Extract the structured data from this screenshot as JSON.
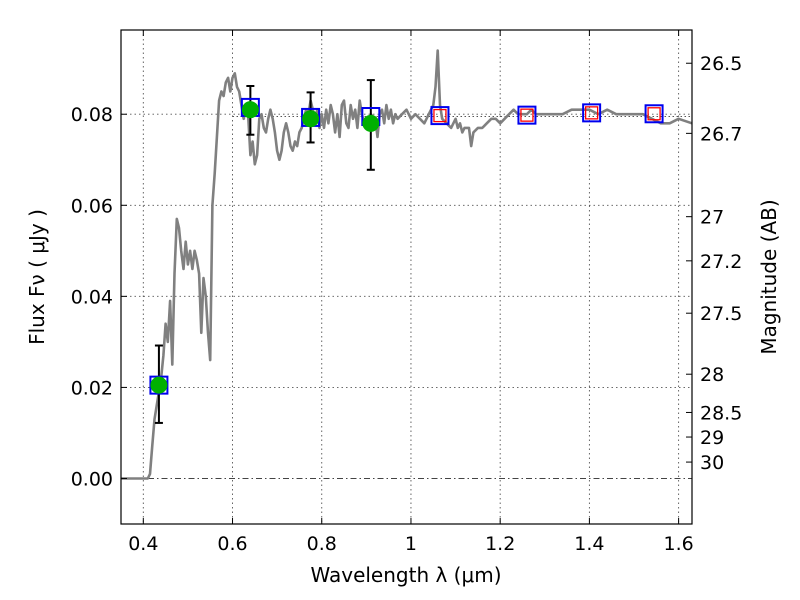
{
  "chart_data": {
    "type": "line",
    "xlabel": "Wavelength  λ (μm)",
    "ylabel": "Flux  Fν  ( μJy )",
    "ylabel_right": "Magnitude (AB)",
    "xlim": [
      0.35,
      1.63
    ],
    "ylim": [
      -0.01,
      0.0985
    ],
    "x_ticks": [
      0.4,
      0.6,
      0.8,
      1.0,
      1.2,
      1.4,
      1.6
    ],
    "x_tick_labels": [
      "0.4",
      "0.6",
      "0.8",
      "1",
      "1.2",
      "1.4",
      "1.6"
    ],
    "y_ticks": [
      0.0,
      0.02,
      0.04,
      0.06,
      0.08
    ],
    "y_tick_labels": [
      "0.00",
      "0.02",
      "0.04",
      "0.06",
      "0.08"
    ],
    "right_ticks": [
      {
        "label": "26.5",
        "flux": 0.0912
      },
      {
        "label": "26.7",
        "flux": 0.0758
      },
      {
        "label": "27",
        "flux": 0.0575
      },
      {
        "label": "27.2",
        "flux": 0.0478
      },
      {
        "label": "27.5",
        "flux": 0.0363
      },
      {
        "label": "28",
        "flux": 0.0229
      },
      {
        "label": "28.5",
        "flux": 0.0145
      },
      {
        "label": "29",
        "flux": 0.0091
      },
      {
        "label": "30",
        "flux": 0.0036
      }
    ],
    "grid": true,
    "series": [
      {
        "kind": "sed-model",
        "color": "#808080",
        "points": [
          [
            0.35,
            0.0
          ],
          [
            0.41,
            0.0
          ],
          [
            0.415,
            0.001
          ],
          [
            0.42,
            0.007
          ],
          [
            0.425,
            0.013
          ],
          [
            0.43,
            0.016
          ],
          [
            0.435,
            0.019
          ],
          [
            0.44,
            0.022
          ],
          [
            0.445,
            0.027
          ],
          [
            0.45,
            0.034
          ],
          [
            0.455,
            0.03
          ],
          [
            0.46,
            0.039
          ],
          [
            0.465,
            0.025
          ],
          [
            0.47,
            0.045
          ],
          [
            0.475,
            0.057
          ],
          [
            0.48,
            0.055
          ],
          [
            0.485,
            0.05
          ],
          [
            0.49,
            0.046
          ],
          [
            0.495,
            0.052
          ],
          [
            0.5,
            0.047
          ],
          [
            0.505,
            0.05
          ],
          [
            0.51,
            0.046
          ],
          [
            0.515,
            0.05
          ],
          [
            0.52,
            0.048
          ],
          [
            0.525,
            0.045
          ],
          [
            0.53,
            0.032
          ],
          [
            0.535,
            0.044
          ],
          [
            0.54,
            0.04
          ],
          [
            0.545,
            0.032
          ],
          [
            0.55,
            0.026
          ],
          [
            0.555,
            0.06
          ],
          [
            0.56,
            0.067
          ],
          [
            0.565,
            0.075
          ],
          [
            0.57,
            0.083
          ],
          [
            0.575,
            0.085
          ],
          [
            0.58,
            0.084
          ],
          [
            0.585,
            0.087
          ],
          [
            0.59,
            0.088
          ],
          [
            0.595,
            0.085
          ],
          [
            0.6,
            0.088
          ],
          [
            0.605,
            0.089
          ],
          [
            0.61,
            0.086
          ],
          [
            0.615,
            0.085
          ],
          [
            0.62,
            0.082
          ],
          [
            0.625,
            0.079
          ],
          [
            0.63,
            0.081
          ],
          [
            0.635,
            0.08
          ],
          [
            0.64,
            0.071
          ],
          [
            0.645,
            0.074
          ],
          [
            0.65,
            0.069
          ],
          [
            0.655,
            0.071
          ],
          [
            0.66,
            0.079
          ],
          [
            0.665,
            0.08
          ],
          [
            0.67,
            0.077
          ],
          [
            0.675,
            0.076
          ],
          [
            0.68,
            0.079
          ],
          [
            0.685,
            0.081
          ],
          [
            0.69,
            0.079
          ],
          [
            0.695,
            0.076
          ],
          [
            0.7,
            0.072
          ],
          [
            0.705,
            0.07
          ],
          [
            0.71,
            0.072
          ],
          [
            0.715,
            0.076
          ],
          [
            0.72,
            0.078
          ],
          [
            0.725,
            0.076
          ],
          [
            0.73,
            0.073
          ],
          [
            0.735,
            0.072
          ],
          [
            0.74,
            0.074
          ],
          [
            0.745,
            0.073
          ],
          [
            0.75,
            0.076
          ],
          [
            0.755,
            0.077
          ],
          [
            0.76,
            0.079
          ],
          [
            0.765,
            0.081
          ],
          [
            0.77,
            0.08
          ],
          [
            0.775,
            0.083
          ],
          [
            0.78,
            0.081
          ],
          [
            0.785,
            0.079
          ],
          [
            0.79,
            0.081
          ],
          [
            0.795,
            0.077
          ],
          [
            0.8,
            0.08
          ],
          [
            0.805,
            0.077
          ],
          [
            0.81,
            0.081
          ],
          [
            0.815,
            0.078
          ],
          [
            0.82,
            0.082
          ],
          [
            0.825,
            0.08
          ],
          [
            0.83,
            0.076
          ],
          [
            0.835,
            0.08
          ],
          [
            0.84,
            0.075
          ],
          [
            0.845,
            0.082
          ],
          [
            0.85,
            0.083
          ],
          [
            0.855,
            0.078
          ],
          [
            0.86,
            0.077
          ],
          [
            0.865,
            0.082
          ],
          [
            0.87,
            0.079
          ],
          [
            0.875,
            0.081
          ],
          [
            0.88,
            0.077
          ],
          [
            0.885,
            0.083
          ],
          [
            0.89,
            0.08
          ],
          [
            0.895,
            0.078
          ],
          [
            0.9,
            0.079
          ],
          [
            0.905,
            0.077
          ],
          [
            0.91,
            0.08
          ],
          [
            0.92,
            0.079
          ],
          [
            0.925,
            0.075
          ],
          [
            0.93,
            0.08
          ],
          [
            0.935,
            0.081
          ],
          [
            0.94,
            0.078
          ],
          [
            0.945,
            0.082
          ],
          [
            0.95,
            0.079
          ],
          [
            0.955,
            0.081
          ],
          [
            0.96,
            0.078
          ],
          [
            0.965,
            0.08
          ],
          [
            0.97,
            0.079
          ],
          [
            0.98,
            0.08
          ],
          [
            0.99,
            0.081
          ],
          [
            1.0,
            0.079
          ],
          [
            1.01,
            0.08
          ],
          [
            1.02,
            0.079
          ],
          [
            1.03,
            0.078
          ],
          [
            1.04,
            0.08
          ],
          [
            1.05,
            0.082
          ],
          [
            1.055,
            0.086
          ],
          [
            1.06,
            0.094
          ],
          [
            1.065,
            0.082
          ],
          [
            1.07,
            0.079
          ],
          [
            1.08,
            0.078
          ],
          [
            1.09,
            0.077
          ],
          [
            1.1,
            0.079
          ],
          [
            1.105,
            0.077
          ],
          [
            1.11,
            0.078
          ],
          [
            1.115,
            0.076
          ],
          [
            1.12,
            0.077
          ],
          [
            1.13,
            0.077
          ],
          [
            1.135,
            0.073
          ],
          [
            1.14,
            0.076
          ],
          [
            1.15,
            0.077
          ],
          [
            1.16,
            0.077
          ],
          [
            1.17,
            0.078
          ],
          [
            1.18,
            0.079
          ],
          [
            1.19,
            0.079
          ],
          [
            1.2,
            0.078
          ],
          [
            1.21,
            0.079
          ],
          [
            1.22,
            0.08
          ],
          [
            1.23,
            0.081
          ],
          [
            1.24,
            0.08
          ],
          [
            1.25,
            0.08
          ],
          [
            1.26,
            0.08
          ],
          [
            1.27,
            0.081
          ],
          [
            1.28,
            0.08
          ],
          [
            1.3,
            0.08
          ],
          [
            1.32,
            0.08
          ],
          [
            1.34,
            0.08
          ],
          [
            1.36,
            0.081
          ],
          [
            1.38,
            0.081
          ],
          [
            1.4,
            0.081
          ],
          [
            1.42,
            0.08
          ],
          [
            1.44,
            0.081
          ],
          [
            1.46,
            0.08
          ],
          [
            1.48,
            0.08
          ],
          [
            1.5,
            0.08
          ],
          [
            1.52,
            0.08
          ],
          [
            1.54,
            0.079
          ],
          [
            1.56,
            0.078
          ],
          [
            1.58,
            0.078
          ],
          [
            1.6,
            0.079
          ],
          [
            1.63,
            0.078
          ]
        ]
      },
      {
        "kind": "observed-with-errors",
        "color": "#00b000",
        "points": [
          {
            "x": 0.435,
            "y": 0.0205,
            "err_lo": 0.0122,
            "err_hi": 0.0292
          },
          {
            "x": 0.64,
            "y": 0.081,
            "err_lo": 0.0755,
            "err_hi": 0.0862
          },
          {
            "x": 0.775,
            "y": 0.079,
            "err_lo": 0.0738,
            "err_hi": 0.0848
          },
          {
            "x": 0.91,
            "y": 0.078,
            "err_lo": 0.0678,
            "err_hi": 0.0875
          }
        ]
      },
      {
        "kind": "model-photometry",
        "color": "#0000ee",
        "points": [
          {
            "x": 0.435,
            "y": 0.0205
          },
          {
            "x": 0.64,
            "y": 0.0815
          },
          {
            "x": 0.775,
            "y": 0.0793
          },
          {
            "x": 0.91,
            "y": 0.0795
          },
          {
            "x": 1.065,
            "y": 0.0797
          },
          {
            "x": 1.26,
            "y": 0.0798
          },
          {
            "x": 1.405,
            "y": 0.0803
          },
          {
            "x": 1.545,
            "y": 0.0801
          }
        ]
      },
      {
        "kind": "upper-limits",
        "color": "#ff0000",
        "points": [
          {
            "x": 1.065,
            "y": 0.0797
          },
          {
            "x": 1.26,
            "y": 0.0798
          },
          {
            "x": 1.405,
            "y": 0.0803
          },
          {
            "x": 1.545,
            "y": 0.0801
          }
        ]
      }
    ]
  }
}
